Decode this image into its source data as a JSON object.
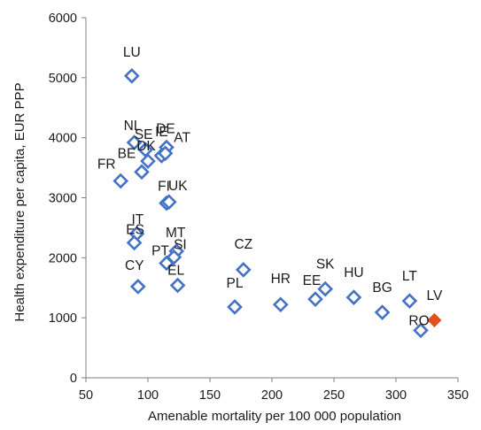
{
  "chart_data": {
    "type": "scatter",
    "title": "",
    "xlabel": "Amenable mortality per 100 000 population",
    "ylabel": "Health expenditure per capita, EUR PPP",
    "xlim": [
      50,
      350
    ],
    "ylim": [
      0,
      6000
    ],
    "x_ticks": [
      "50",
      "100",
      "150",
      "200",
      "250",
      "300",
      "350"
    ],
    "y_ticks": [
      "0",
      "1000",
      "2000",
      "3000",
      "4000",
      "5000",
      "6000"
    ],
    "grid": false,
    "legend": "none",
    "colors": {
      "default_marker": "#4472c4",
      "highlight_marker": "#e0501e",
      "axis": "#7f7f7f"
    },
    "points": [
      {
        "label": "LU",
        "x": 87,
        "y": 5030
      },
      {
        "label": "IE",
        "x": 111,
        "y": 3700
      },
      {
        "label": "DE",
        "x": 115,
        "y": 3840
      },
      {
        "label": "NL",
        "x": 89,
        "y": 3920
      },
      {
        "label": "SE",
        "x": 98,
        "y": 3800
      },
      {
        "label": "DK",
        "x": 100,
        "y": 3610
      },
      {
        "label": "AT",
        "x": 114,
        "y": 3740
      },
      {
        "label": "BE",
        "x": 95,
        "y": 3430
      },
      {
        "label": "FR",
        "x": 78,
        "y": 3280
      },
      {
        "label": "FI",
        "x": 115,
        "y": 2910
      },
      {
        "label": "UK",
        "x": 117,
        "y": 2930
      },
      {
        "label": "IT",
        "x": 91,
        "y": 2400
      },
      {
        "label": "ES",
        "x": 89,
        "y": 2250
      },
      {
        "label": "MT",
        "x": 123,
        "y": 2110
      },
      {
        "label": "SI",
        "x": 121,
        "y": 2010
      },
      {
        "label": "PT",
        "x": 115,
        "y": 1910
      },
      {
        "label": "CY",
        "x": 92,
        "y": 1520
      },
      {
        "label": "EL",
        "x": 124,
        "y": 1540
      },
      {
        "label": "CZ",
        "x": 177,
        "y": 1800
      },
      {
        "label": "PL",
        "x": 170,
        "y": 1180
      },
      {
        "label": "HR",
        "x": 207,
        "y": 1220
      },
      {
        "label": "EE",
        "x": 235,
        "y": 1310
      },
      {
        "label": "SK",
        "x": 243,
        "y": 1480
      },
      {
        "label": "HU",
        "x": 266,
        "y": 1340
      },
      {
        "label": "BG",
        "x": 289,
        "y": 1090
      },
      {
        "label": "LT",
        "x": 311,
        "y": 1280
      },
      {
        "label": "RO",
        "x": 320,
        "y": 790
      },
      {
        "label": "LV",
        "x": 331,
        "y": 960,
        "highlight": true
      }
    ]
  }
}
